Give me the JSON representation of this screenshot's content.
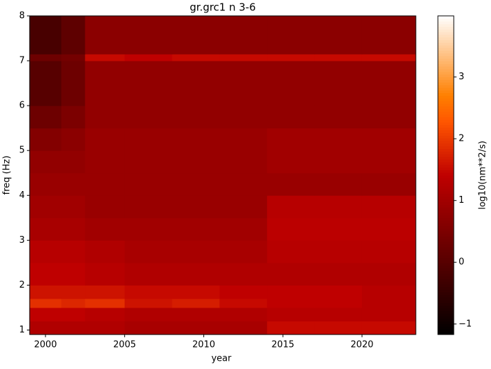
{
  "chart_data": {
    "type": "heatmap",
    "title": "gr.grc1 n 3-6",
    "xlabel": "year",
    "ylabel": "freq (Hz)",
    "colorbar_label": "log10(nm**2/s)",
    "colormap": "gist_heat",
    "xbins": [
      1999,
      2001,
      2002.5,
      2005,
      2008,
      2011,
      2014,
      2017,
      2020,
      2023.4
    ],
    "ybins": [
      0.9,
      1.2,
      1.5,
      1.7,
      2.0,
      2.5,
      3.0,
      3.5,
      4.0,
      4.5,
      5.0,
      5.5,
      6.0,
      7.0,
      7.15,
      8.0
    ],
    "z": [
      [
        1.2,
        1.2,
        1.2,
        1.1,
        1.1,
        1.1,
        1.5,
        1.5,
        1.5
      ],
      [
        1.4,
        1.4,
        1.3,
        1.2,
        1.2,
        1.2,
        1.3,
        1.3,
        1.3
      ],
      [
        1.9,
        1.8,
        1.9,
        1.6,
        1.7,
        1.5,
        1.4,
        1.4,
        1.3
      ],
      [
        1.6,
        1.6,
        1.6,
        1.5,
        1.5,
        1.4,
        1.4,
        1.4,
        1.3
      ],
      [
        1.4,
        1.4,
        1.3,
        1.2,
        1.2,
        1.2,
        1.2,
        1.2,
        1.2
      ],
      [
        1.3,
        1.3,
        1.2,
        1.1,
        1.1,
        1.1,
        1.3,
        1.3,
        1.3
      ],
      [
        1.1,
        1.1,
        1.0,
        1.0,
        1.0,
        1.0,
        1.35,
        1.35,
        1.35
      ],
      [
        1.0,
        1.0,
        0.9,
        0.9,
        0.9,
        0.9,
        1.3,
        1.3,
        1.3
      ],
      [
        0.9,
        0.9,
        0.9,
        0.9,
        0.9,
        0.9,
        0.9,
        0.9,
        0.9
      ],
      [
        0.8,
        0.8,
        0.9,
        0.9,
        0.9,
        0.9,
        1.0,
        1.0,
        1.0
      ],
      [
        0.6,
        0.7,
        0.9,
        0.9,
        0.9,
        0.9,
        1.0,
        1.0,
        1.0
      ],
      [
        0.3,
        0.5,
        0.8,
        0.8,
        0.8,
        0.8,
        0.8,
        0.8,
        0.8
      ],
      [
        0.0,
        0.3,
        0.8,
        0.8,
        0.8,
        0.8,
        0.8,
        0.8,
        0.8
      ],
      [
        0.3,
        0.4,
        1.5,
        1.4,
        1.5,
        1.5,
        1.5,
        1.5,
        1.5
      ],
      [
        -0.2,
        0.1,
        0.7,
        0.7,
        0.7,
        0.7,
        0.7,
        0.7,
        0.7
      ]
    ],
    "xlim": [
      1999,
      2023.4
    ],
    "xticks": [
      2000,
      2005,
      2010,
      2015,
      2020
    ],
    "ylim": [
      0.9,
      8
    ],
    "yticks": [
      1,
      2,
      3,
      4,
      5,
      6,
      7,
      8
    ],
    "clim": [
      -1.17,
      3.99
    ],
    "cticks": [
      {
        "value": -1,
        "label": "−1"
      },
      0,
      1,
      2,
      3
    ]
  }
}
